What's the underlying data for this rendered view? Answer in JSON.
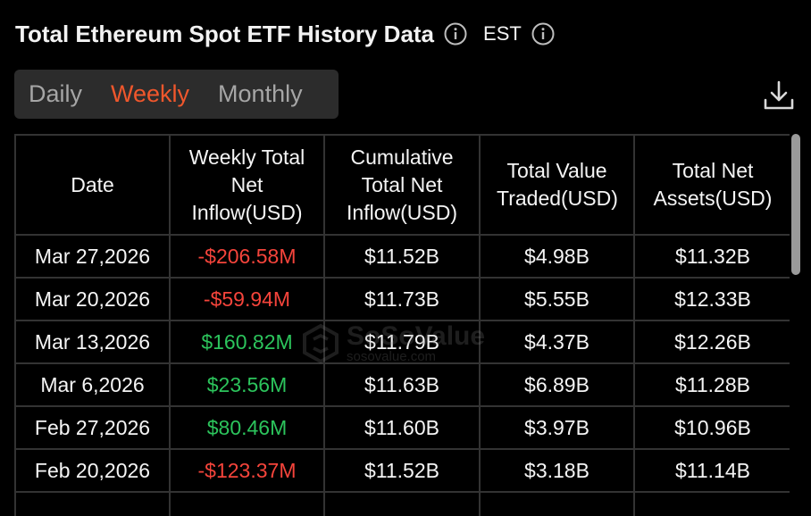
{
  "header": {
    "title": "Total Ethereum Spot ETF History Data",
    "timezone": "EST"
  },
  "tabs": [
    {
      "label": "Daily",
      "active": false
    },
    {
      "label": "Weekly",
      "active": true
    },
    {
      "label": "Monthly",
      "active": false
    }
  ],
  "table": {
    "columns": [
      "Date",
      "Weekly Total Net Inflow(USD)",
      "Cumulative Total Net Inflow(USD)",
      "Total Value Traded(USD)",
      "Total Net Assets(USD)"
    ],
    "rows": [
      {
        "date": "Mar 27,2026",
        "inflow": "-$206.58M",
        "inflow_sign": "neg",
        "cumulative": "$11.52B",
        "traded": "$4.98B",
        "assets": "$11.32B"
      },
      {
        "date": "Mar 20,2026",
        "inflow": "-$59.94M",
        "inflow_sign": "neg",
        "cumulative": "$11.73B",
        "traded": "$5.55B",
        "assets": "$12.33B"
      },
      {
        "date": "Mar 13,2026",
        "inflow": "$160.82M",
        "inflow_sign": "pos",
        "cumulative": "$11.79B",
        "traded": "$4.37B",
        "assets": "$12.26B"
      },
      {
        "date": "Mar 6,2026",
        "inflow": "$23.56M",
        "inflow_sign": "pos",
        "cumulative": "$11.63B",
        "traded": "$6.89B",
        "assets": "$11.28B"
      },
      {
        "date": "Feb 27,2026",
        "inflow": "$80.46M",
        "inflow_sign": "pos",
        "cumulative": "$11.60B",
        "traded": "$3.97B",
        "assets": "$10.96B"
      },
      {
        "date": "Feb 20,2026",
        "inflow": "-$123.37M",
        "inflow_sign": "neg",
        "cumulative": "$11.52B",
        "traded": "$3.18B",
        "assets": "$11.14B"
      },
      {
        "date": "",
        "inflow": "",
        "inflow_sign": "pos",
        "cumulative": "",
        "traded": "",
        "assets": ""
      }
    ]
  },
  "watermark": {
    "name": "SoSoValue",
    "url": "sosovalue.com"
  },
  "colors": {
    "accent": "#f0572c",
    "negative": "#f5443b",
    "positive": "#2cc45c",
    "tab_bg": "#2c2c2c"
  },
  "icons": {
    "info": "info-icon",
    "download": "download-icon"
  }
}
